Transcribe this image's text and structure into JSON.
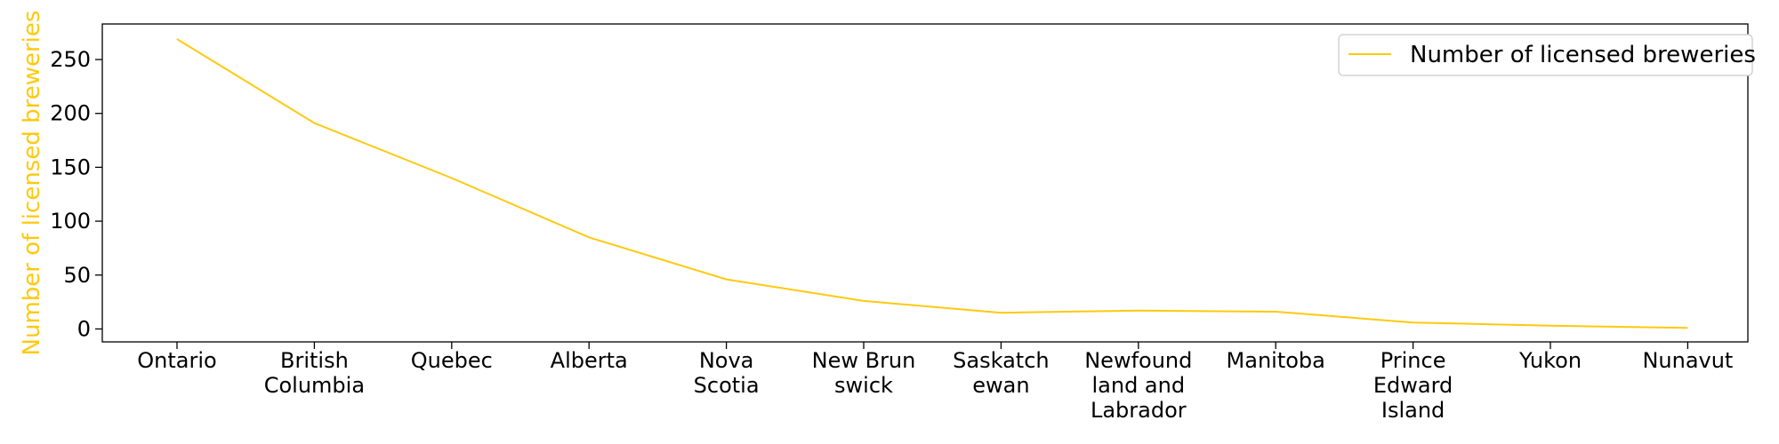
{
  "chart_data": {
    "type": "line",
    "categories": [
      "Ontario",
      "British\nColumbia",
      "Quebec",
      "Alberta",
      "Nova\nScotia",
      "New Brun\nswick",
      "Saskatch\newan",
      "Newfound\nland and\nLabrador",
      "Manitoba",
      "Prince\nEdward\nIsland",
      "Yukon",
      "Nunavut"
    ],
    "series": [
      {
        "name": "Number of licensed breweries",
        "values": [
          269,
          191,
          140,
          85,
          46,
          26,
          15,
          17,
          16,
          6,
          3,
          1
        ],
        "color": "#ffc90e"
      }
    ],
    "ylabel": "Number of licensed breweries",
    "ylabel_color": "#ffc90e",
    "xlabel": "",
    "ylim": [
      -12,
      283
    ],
    "yticks": [
      0,
      50,
      100,
      150,
      200,
      250
    ],
    "grid": false,
    "legend_position": "top-right"
  }
}
